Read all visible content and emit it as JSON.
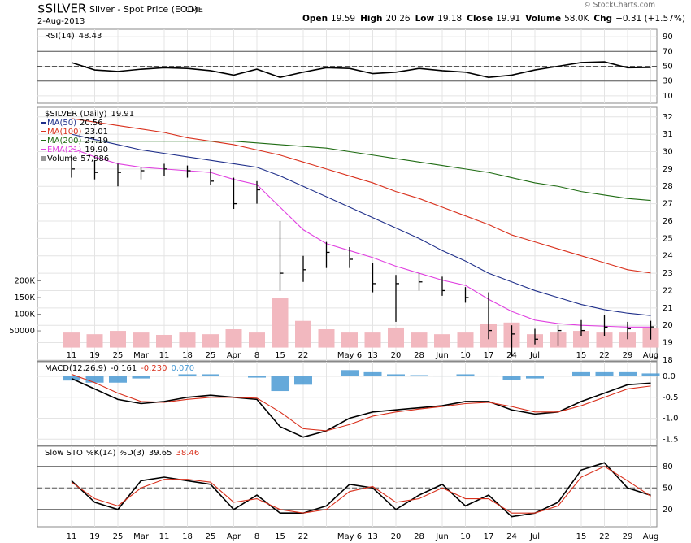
{
  "header": {
    "symbol": "$SILVER",
    "name": "Silver - Spot Price (EOD)",
    "exchange": "CME",
    "date": "2-Aug-2013",
    "credit": "© StockCharts.com",
    "stats": [
      {
        "label": "Open",
        "value": "19.59"
      },
      {
        "label": "High",
        "value": "20.26"
      },
      {
        "label": "Low",
        "value": "19.18"
      },
      {
        "label": "Close",
        "value": "19.91"
      },
      {
        "label": "Volume",
        "value": "58.0K"
      },
      {
        "label": "Chg",
        "value": "+0.31 (+1.57%)"
      }
    ]
  },
  "chart_data": [
    {
      "type": "line",
      "title": "RSI(14)",
      "ylim": [
        0,
        100
      ],
      "yticks": [
        10,
        30,
        50,
        70,
        90
      ],
      "reference_lines": [
        {
          "value": 70
        },
        {
          "value": 50,
          "dashed": true
        },
        {
          "value": 30
        }
      ],
      "series": [
        {
          "name": "RSI(14)",
          "color": "#000000",
          "legend_value": "48.43",
          "fill_above": 70,
          "fill_below": 30,
          "values": [
            55,
            45,
            43,
            46,
            48,
            47,
            44,
            38,
            46,
            35,
            42,
            48,
            47,
            40,
            42,
            47,
            44,
            42,
            35,
            38,
            45,
            50,
            55,
            56,
            48,
            48.43
          ]
        }
      ]
    },
    {
      "type": "ohlc",
      "categories": [
        "11",
        "19",
        "25",
        "Mar",
        "11",
        "18",
        "25",
        "Apr",
        "8",
        "15",
        "22",
        null,
        "May 6",
        "13",
        "20",
        "28",
        "Jun",
        "10",
        "17",
        "24",
        "Jul",
        null,
        "15",
        "22",
        "29",
        "Aug"
      ],
      "ylim": [
        17.95,
        32.55
      ],
      "yticks": [
        18,
        19,
        20,
        21,
        22,
        23,
        24,
        25,
        26,
        27,
        28,
        29,
        30,
        31,
        32
      ],
      "y2lim": [
        -40000,
        720000
      ],
      "y2ticks": [
        {
          "value": 200000,
          "label": "200K"
        },
        {
          "value": 150000,
          "label": "150K"
        },
        {
          "value": 100000,
          "label": "100K"
        },
        50000
      ],
      "price": {
        "name": "$SILVER (Daily)",
        "color": "#000000",
        "legend_value": "19.91",
        "high": [
          29.8,
          29.5,
          29.3,
          29.1,
          29.3,
          29.2,
          29.0,
          28.5,
          28.3,
          26.0,
          24.0,
          24.8,
          24.5,
          23.6,
          22.9,
          23.0,
          22.8,
          22.2,
          21.9,
          20.0,
          19.8,
          20.0,
          20.3,
          20.6,
          20.2,
          20.26
        ],
        "low": [
          28.5,
          28.4,
          28.0,
          28.4,
          28.6,
          28.5,
          28.1,
          26.7,
          27.0,
          22.0,
          22.5,
          23.3,
          23.3,
          21.9,
          20.2,
          22.0,
          21.7,
          21.3,
          19.2,
          18.2,
          18.9,
          18.8,
          19.4,
          19.4,
          19.2,
          19.18
        ],
        "close": [
          29.0,
          28.8,
          28.8,
          28.9,
          29.0,
          28.9,
          28.3,
          27.0,
          27.8,
          23.0,
          23.2,
          24.2,
          23.8,
          22.4,
          22.4,
          22.5,
          22.0,
          21.6,
          19.7,
          19.5,
          19.2,
          19.7,
          19.7,
          19.9,
          19.8,
          19.91
        ]
      },
      "series": [
        {
          "name": "MA(50)",
          "color": "#1f2f8a",
          "legend_value": "20.56",
          "values": [
            31.0,
            30.7,
            30.4,
            30.1,
            29.9,
            29.7,
            29.5,
            29.3,
            29.1,
            28.6,
            28.0,
            27.4,
            26.8,
            26.2,
            25.6,
            25.0,
            24.3,
            23.7,
            23.0,
            22.5,
            22.0,
            21.6,
            21.2,
            20.9,
            20.7,
            20.56
          ]
        },
        {
          "name": "MA(100)",
          "color": "#d9301c",
          "legend_value": "23.01",
          "values": [
            31.9,
            31.7,
            31.5,
            31.3,
            31.1,
            30.8,
            30.6,
            30.4,
            30.1,
            29.8,
            29.4,
            29.0,
            28.6,
            28.2,
            27.7,
            27.3,
            26.8,
            26.3,
            25.8,
            25.2,
            24.8,
            24.4,
            24.0,
            23.6,
            23.2,
            23.01
          ]
        },
        {
          "name": "MA(200)",
          "color": "#1e6b12",
          "legend_value": "27.19",
          "values": [
            30.6,
            30.6,
            30.6,
            30.6,
            30.6,
            30.6,
            30.6,
            30.6,
            30.5,
            30.4,
            30.3,
            30.2,
            30.0,
            29.8,
            29.6,
            29.4,
            29.2,
            29.0,
            28.8,
            28.5,
            28.2,
            28.0,
            27.7,
            27.5,
            27.3,
            27.19
          ]
        },
        {
          "name": "EMA(21)",
          "color": "#e040e0",
          "legend_value": "19.90",
          "values": [
            30.2,
            29.7,
            29.3,
            29.1,
            29.0,
            28.9,
            28.8,
            28.4,
            28.1,
            26.8,
            25.5,
            24.7,
            24.3,
            23.9,
            23.4,
            23.0,
            22.6,
            22.3,
            21.5,
            20.8,
            20.3,
            20.1,
            20.0,
            19.95,
            19.9,
            19.9
          ]
        }
      ],
      "volume": {
        "name": "Volume",
        "color": "#f2b8bf",
        "legend_value": "57,986",
        "values": [
          45000,
          40000,
          50000,
          45000,
          38000,
          45000,
          40000,
          55000,
          45000,
          150000,
          80000,
          55000,
          45000,
          45000,
          60000,
          45000,
          40000,
          45000,
          70000,
          75000,
          40000,
          45000,
          50000,
          45000,
          45000,
          57986
        ]
      }
    },
    {
      "type": "macd",
      "title": "MACD(12,26,9)",
      "ylim": [
        -1.65,
        0.35
      ],
      "yticks": [
        {
          "value": 0,
          "label": "0.0"
        },
        -0.5,
        {
          "value": -1,
          "label": "-1.0"
        },
        -1.5
      ],
      "series": [
        {
          "name": "MACD",
          "color": "#000000",
          "legend_value": "-0.161",
          "values": [
            -0.05,
            -0.3,
            -0.55,
            -0.65,
            -0.6,
            -0.5,
            -0.45,
            -0.5,
            -0.55,
            -1.2,
            -1.45,
            -1.3,
            -1.0,
            -0.85,
            -0.8,
            -0.75,
            -0.7,
            -0.6,
            -0.6,
            -0.8,
            -0.9,
            -0.85,
            -0.6,
            -0.4,
            -0.2,
            -0.161
          ]
        },
        {
          "name": "Signal",
          "color": "#d9301c",
          "legend_value": "-0.230",
          "values": [
            0.05,
            -0.15,
            -0.4,
            -0.6,
            -0.62,
            -0.55,
            -0.5,
            -0.5,
            -0.52,
            -0.85,
            -1.25,
            -1.3,
            -1.15,
            -0.95,
            -0.85,
            -0.78,
            -0.72,
            -0.65,
            -0.62,
            -0.72,
            -0.85,
            -0.85,
            -0.7,
            -0.5,
            -0.3,
            -0.23
          ]
        }
      ],
      "histogram": {
        "name": "Histogram",
        "color": "#4a9ad4",
        "legend_value": "0.070",
        "values": [
          -0.1,
          -0.15,
          -0.15,
          -0.05,
          0.02,
          0.05,
          0.05,
          0,
          -0.03,
          -0.35,
          -0.2,
          0,
          0.15,
          0.1,
          0.05,
          0.03,
          0.02,
          0.05,
          0.02,
          -0.08,
          -0.05,
          0,
          0.1,
          0.1,
          0.1,
          0.07
        ]
      }
    },
    {
      "type": "line",
      "title": "Slow STO",
      "ylim": [
        -4,
        108
      ],
      "yticks": [
        20,
        50,
        80
      ],
      "reference_lines": [
        {
          "value": 80
        },
        {
          "value": 50,
          "dashed": true
        },
        {
          "value": 20
        }
      ],
      "series": [
        {
          "name": "%K(14)",
          "color": "#000000",
          "legend_value": "39.65",
          "values": [
            60,
            30,
            20,
            60,
            65,
            60,
            55,
            20,
            40,
            15,
            15,
            25,
            55,
            50,
            20,
            40,
            55,
            25,
            40,
            10,
            15,
            30,
            75,
            85,
            50,
            39.65
          ]
        },
        {
          "name": "%D(3)",
          "color": "#d9301c",
          "legend_value": "38.46",
          "values": [
            58,
            35,
            25,
            50,
            62,
            62,
            58,
            30,
            35,
            20,
            15,
            20,
            45,
            52,
            30,
            35,
            50,
            35,
            35,
            15,
            15,
            25,
            65,
            80,
            60,
            38.46
          ]
        }
      ]
    }
  ]
}
